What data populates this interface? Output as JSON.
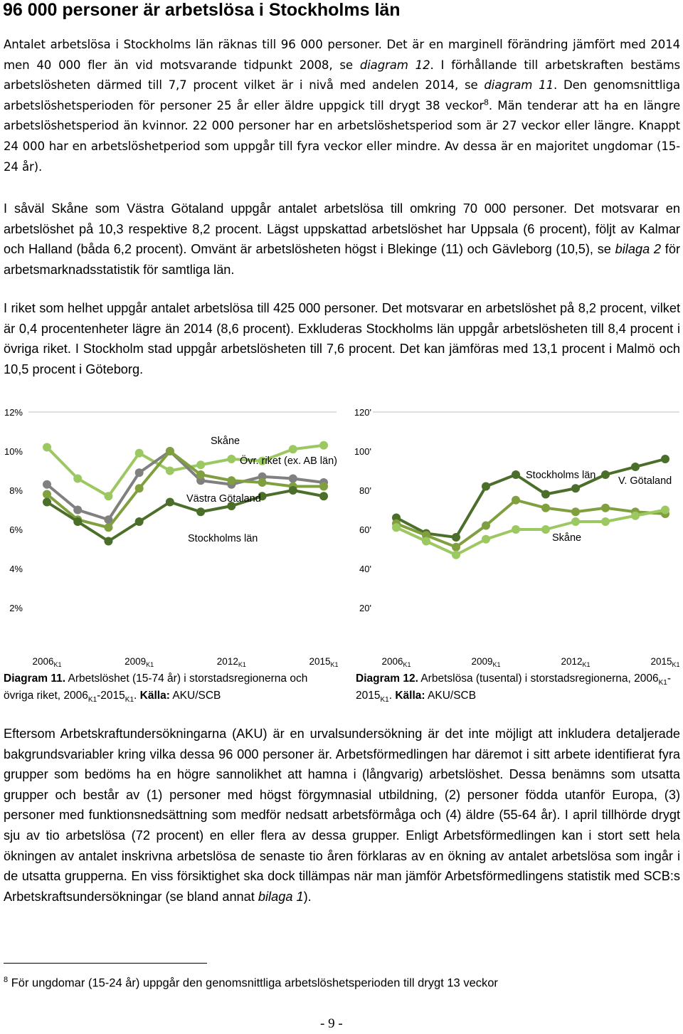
{
  "heading": "96 000 personer är arbetslösa i Stockholms län",
  "p1": {
    "a": "Antalet arbetslösa i Stockholms län räknas till 96 000 personer. Det är en marginell förändring jämfört med 2014 men 40 000 fler än vid motsvarande tidpunkt 2008, se ",
    "a_em": "diagram 12",
    "b": ". I förhållande till arbetskraften bestäms arbetslösheten därmed till 7,7 procent vilket är i nivå med andelen 2014, se ",
    "b_em": "diagram 11",
    "c": ". Den genomsnittliga arbetslöshetsperioden för personer 25 år eller äldre uppgick till drygt 38 veckor",
    "c_sup": "8",
    "d": ". Män tenderar att ha en längre arbetslöshetsperiod än kvinnor. 22 000 personer har en arbetslöshetsperiod som är 27 veckor eller längre. Knappt 24 000 har en arbetslöshetperiod som uppgår till fyra veckor eller mindre. Av dessa är en majoritet ungdomar (15-24 år)."
  },
  "p2": {
    "a": "I såväl Skåne som Västra Götaland uppgår antalet arbetslösa till omkring 70 000 personer. Det motsvarar en arbetslöshet på 10,3 respektive 8,2 procent. Lägst uppskattad arbetslöshet har Uppsala (6 procent), följt av Kalmar och Halland (båda 6,2 procent). Omvänt är arbetslösheten högst i Blekinge (11) och Gävleborg (10,5), se ",
    "a_em": "bilaga 2",
    "b": " för arbetsmarknadsstatistik för samtliga län."
  },
  "p3": "I riket som helhet uppgår antalet arbetslösa till 425 000 personer. Det motsvarar en arbetslöshet på 8,2 procent, vilket är 0,4 procentenheter lägre än 2014 (8,6 procent). Exkluderas Stockholms län uppgår arbetslösheten till 8,4 procent i övriga riket. I Stockholm stad uppgår arbetslösheten till 7,6 procent. Det kan jämföras med 13,1 procent i Malmö och 10,5 procent i Göteborg.",
  "p4": {
    "a": "Eftersom Arbetskraftundersökningarna (AKU) är en urvalsundersökning är det inte möjligt att inkludera detaljerade bakgrundsvariabler kring vilka dessa 96 000 personer är. Arbetsförmedlingen har däremot i sitt arbete identifierat fyra grupper som bedöms ha en högre sannolikhet att hamna i (långvarig) arbetslöshet. Dessa benämns som utsatta grupper och består av (1) personer med högst förgymnasial utbildning, (2) personer födda utanför Europa, (3) personer med funktionsnedsättning som medför nedsatt arbetsförmåga och (4) äldre (55-64 år). I april tillhörde drygt sju av tio arbetslösa (72 procent) en eller flera av dessa grupper. Enligt Arbetsförmedlingen kan i stort sett hela ökningen av antalet inskrivna arbetslösa de senaste tio åren förklaras av en ökning av antalet arbetslösa som ingår i de utsatta grupperna. En viss försiktighet ska dock tillämpas när man jämför Arbetsförmedlingens statistik med SCB:s Arbetskraftsundersökningar (se bland annat ",
    "a_em": "bilaga 1",
    "b": ")."
  },
  "caption11": {
    "label": "Diagram 11.",
    "text1": " Arbetslöshet (15-74 år) i storstadsregionerna och övriga riket, 2006",
    "sub1": "K1",
    "text2": "-2015",
    "sub2": "K1",
    "text3": ". ",
    "source_label": "Källa:",
    "source": " AKU/SCB"
  },
  "caption12": {
    "label": "Diagram 12.",
    "text1": " Arbetslösa (tusental) i storstadsregionerna, 2006",
    "sub1": "K1",
    "text2": "-2015",
    "sub2": "K1",
    "text3": ". ",
    "source_label": "Källa:",
    "source": " AKU/SCB"
  },
  "footnote": {
    "num": "8",
    "text": " För ungdomar (15-24 år) uppgår den genomsnittliga arbetslöshetsperioden till drygt 13 veckor"
  },
  "page_number": "- 9 -",
  "colors": {
    "skane": "#9cc862",
    "stockholm": "#4b6e2a",
    "vgotaland": "#80a03f",
    "ovr": "#808080"
  },
  "chart_data": [
    {
      "type": "line",
      "id": "diagram-11",
      "categories": [
        "2006",
        "2007",
        "2008",
        "2009",
        "2010",
        "2011",
        "2012",
        "2013",
        "2014",
        "2015"
      ],
      "tick_labels": [
        {
          "year": "2006",
          "sub": "K1",
          "index": 0
        },
        {
          "year": "2009",
          "sub": "K1",
          "index": 3
        },
        {
          "year": "2012",
          "sub": "K1",
          "index": 6
        },
        {
          "year": "2015",
          "sub": "K1",
          "index": 9
        }
      ],
      "y_ticks": [
        "2%",
        "4%",
        "6%",
        "8%",
        "10%",
        "12%"
      ],
      "ylim": [
        0,
        12
      ],
      "series": [
        {
          "name": "Skåne",
          "color_key": "skane",
          "values": [
            10.2,
            8.6,
            7.7,
            9.9,
            9.0,
            9.3,
            9.6,
            9.5,
            10.1,
            10.3
          ]
        },
        {
          "name": "Övr. riket (ex. AB län)",
          "color_key": "ovr",
          "values": [
            8.3,
            7.0,
            6.5,
            8.9,
            10.0,
            8.5,
            8.3,
            8.7,
            8.6,
            8.4
          ]
        },
        {
          "name": "Västra Götaland",
          "color_key": "vgotaland",
          "values": [
            7.8,
            6.5,
            6.1,
            8.1,
            10.0,
            8.8,
            8.5,
            8.4,
            8.2,
            8.2
          ]
        },
        {
          "name": "Stockholms län",
          "color_key": "stockholm",
          "values": [
            7.4,
            6.4,
            5.4,
            6.4,
            7.4,
            6.9,
            7.2,
            7.7,
            8.0,
            7.7
          ]
        }
      ],
      "labels": [
        "Skåne",
        "Övr. riket (ex. AB län)",
        "Västra Götaland",
        "Stockholms län"
      ]
    },
    {
      "type": "line",
      "id": "diagram-12",
      "categories": [
        "2006",
        "2007",
        "2008",
        "2009",
        "2010",
        "2011",
        "2012",
        "2013",
        "2014",
        "2015"
      ],
      "tick_labels": [
        {
          "year": "2006",
          "sub": "K1",
          "index": 0
        },
        {
          "year": "2009",
          "sub": "K1",
          "index": 3
        },
        {
          "year": "2012",
          "sub": "K1",
          "index": 6
        },
        {
          "year": "2015",
          "sub": "K1",
          "index": 9
        }
      ],
      "y_ticks": [
        "20'",
        "40'",
        "60'",
        "80'",
        "100'",
        "120'"
      ],
      "ylim": [
        0,
        120
      ],
      "series": [
        {
          "name": "Stockholms län",
          "color_key": "stockholm",
          "values": [
            66,
            58,
            56,
            82,
            88,
            78,
            81,
            88,
            92,
            96
          ]
        },
        {
          "name": "V. Götaland",
          "color_key": "vgotaland",
          "values": [
            63,
            57,
            51,
            62,
            75,
            71,
            69,
            71,
            69,
            68
          ]
        },
        {
          "name": "Skåne",
          "color_key": "skane",
          "values": [
            61,
            54,
            47,
            55,
            60,
            60,
            64,
            64,
            67,
            70
          ]
        }
      ],
      "labels": [
        "Stockholms län",
        "V. Götaland",
        "Skåne"
      ]
    }
  ]
}
